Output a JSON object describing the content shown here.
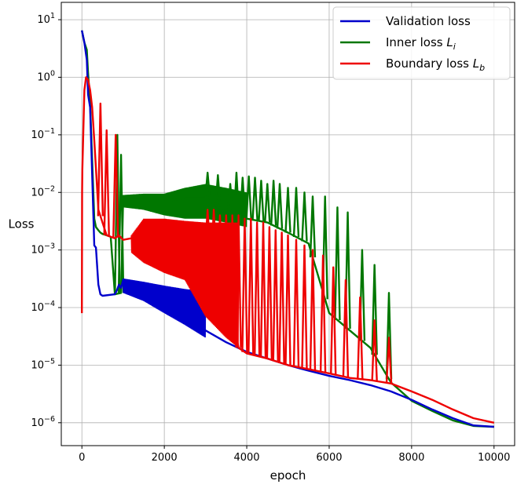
{
  "chart_data": {
    "type": "line",
    "title": "",
    "xlabel": "epoch",
    "ylabel": "Loss",
    "xlim": [
      -500,
      10500
    ],
    "ylim": [
      4e-07,
      20
    ],
    "yscale": "log",
    "grid": true,
    "legend_position": "top-right",
    "x_ticks": [
      {
        "value": 0,
        "label": "0"
      },
      {
        "value": 2000,
        "label": "2000"
      },
      {
        "value": 4000,
        "label": "4000"
      },
      {
        "value": 6000,
        "label": "6000"
      },
      {
        "value": 8000,
        "label": "8000"
      },
      {
        "value": 10000,
        "label": "10000"
      }
    ],
    "y_ticks": [
      {
        "value": 1e-06,
        "base": "10",
        "exp": "−6"
      },
      {
        "value": 1e-05,
        "base": "10",
        "exp": "−5"
      },
      {
        "value": 0.0001,
        "base": "10",
        "exp": "−4"
      },
      {
        "value": 0.001,
        "base": "10",
        "exp": "−3"
      },
      {
        "value": 0.01,
        "base": "10",
        "exp": "−2"
      },
      {
        "value": 0.1,
        "base": "10",
        "exp": "−1"
      },
      {
        "value": 1,
        "base": "10",
        "exp": "0"
      },
      {
        "value": 10,
        "base": "10",
        "exp": "1"
      }
    ],
    "series": [
      {
        "name": "Validation loss",
        "name_parts": {
          "main": "Validation loss",
          "math": "",
          "sub": ""
        },
        "color": "#0000cc",
        "x": [
          0,
          60,
          120,
          150,
          200,
          300,
          340,
          400,
          450,
          500,
          800,
          850,
          900,
          950,
          1000,
          1500,
          2000,
          2500,
          3000,
          3500,
          4000,
          4500,
          5000,
          5500,
          6000,
          6500,
          7000,
          7500,
          8000,
          8500,
          9000,
          9500,
          10000
        ],
        "y": [
          6.5,
          4.0,
          2.0,
          0.5,
          0.3,
          0.0012,
          0.0011,
          0.00025,
          0.00017,
          0.00016,
          0.00017,
          0.0002,
          0.00025,
          0.00022,
          0.0003,
          0.0002,
          0.00013,
          8e-05,
          4e-05,
          2.5e-05,
          1.7e-05,
          1.3e-05,
          1e-05,
          8e-06,
          6.5e-06,
          5.5e-06,
          4.5e-06,
          3.5e-06,
          2.5e-06,
          1.7e-06,
          1.2e-06,
          9e-07,
          8.5e-07
        ],
        "band": {
          "x": [
            1000,
            1500,
            2000,
            2500,
            3000
          ],
          "low": [
            0.00018,
            0.00013,
            8e-05,
            5e-05,
            3e-05
          ],
          "high": [
            0.00032,
            0.00028,
            0.00024,
            0.00021,
            0.00019
          ]
        },
        "spikes": []
      },
      {
        "name": "Inner loss L_i",
        "name_parts": {
          "main": "Inner loss ",
          "math": "L",
          "sub": "i"
        },
        "color": "#007700",
        "x": [
          0,
          60,
          120,
          150,
          200,
          300,
          340,
          400,
          450,
          500,
          600,
          700,
          800,
          950,
          1000,
          1500,
          2000,
          2500,
          3000,
          3500,
          4000,
          4500,
          5000,
          5500,
          6000,
          6500,
          7000,
          7500,
          8000,
          8500,
          9000,
          9500,
          10000
        ],
        "y": [
          6.5,
          4.0,
          3.0,
          1.2,
          0.35,
          0.0035,
          0.0025,
          0.0022,
          0.002,
          0.0019,
          0.0018,
          0.0017,
          0.00017,
          0.00018,
          0.0075,
          0.0075,
          0.007,
          0.008,
          0.008,
          0.0045,
          0.0035,
          0.003,
          0.002,
          0.0013,
          8e-05,
          4e-05,
          2e-05,
          5e-06,
          2.4e-06,
          1.6e-06,
          1.1e-06,
          8.8e-07,
          8.5e-07
        ],
        "band": {
          "x": [
            1000,
            1500,
            2000,
            2500,
            3000,
            3500,
            4000
          ],
          "low": [
            0.0055,
            0.005,
            0.004,
            0.0035,
            0.0035,
            0.003,
            0.0025
          ],
          "high": [
            0.009,
            0.0095,
            0.0095,
            0.012,
            0.014,
            0.012,
            0.01
          ]
        },
        "spikes": [
          {
            "x": 860,
            "y": 0.1
          },
          {
            "x": 950,
            "y": 0.045
          },
          {
            "x": 3050,
            "y": 0.022
          },
          {
            "x": 3300,
            "y": 0.02
          },
          {
            "x": 3600,
            "y": 0.014
          },
          {
            "x": 3750,
            "y": 0.022
          },
          {
            "x": 3900,
            "y": 0.018
          },
          {
            "x": 4050,
            "y": 0.019
          },
          {
            "x": 4200,
            "y": 0.018
          },
          {
            "x": 4350,
            "y": 0.016
          },
          {
            "x": 4500,
            "y": 0.014
          },
          {
            "x": 4650,
            "y": 0.016
          },
          {
            "x": 4800,
            "y": 0.014
          },
          {
            "x": 5000,
            "y": 0.012
          },
          {
            "x": 5200,
            "y": 0.012
          },
          {
            "x": 5400,
            "y": 0.01
          },
          {
            "x": 5600,
            "y": 0.0085
          },
          {
            "x": 5900,
            "y": 0.0085
          },
          {
            "x": 6200,
            "y": 0.0055
          },
          {
            "x": 6450,
            "y": 0.0045
          },
          {
            "x": 6800,
            "y": 0.001
          },
          {
            "x": 7100,
            "y": 0.00055
          },
          {
            "x": 7450,
            "y": 0.00018
          }
        ]
      },
      {
        "name": "Boundary loss L_b",
        "name_parts": {
          "main": "Boundary loss ",
          "math": "L",
          "sub": "b"
        },
        "color": "#ee0000",
        "x": [
          0,
          5,
          10,
          60,
          100,
          150,
          200,
          250,
          300,
          400,
          600,
          800,
          900,
          1000,
          1200,
          1500,
          2000,
          2500,
          3000,
          3500,
          3800,
          4000,
          4500,
          5000,
          5500,
          6000,
          6500,
          7000,
          7500,
          8000,
          8500,
          9000,
          9500,
          10000
        ],
        "y": [
          8e-05,
          0.01,
          0.025,
          0.6,
          1.0,
          0.9,
          0.6,
          0.3,
          0.08,
          0.005,
          0.0018,
          0.0016,
          0.0018,
          0.0015,
          0.0016,
          0.0024,
          0.0021,
          0.0019,
          0.0013,
          0.0003,
          2e-05,
          1.6e-05,
          1.3e-05,
          1e-05,
          8.5e-06,
          7.2e-06,
          6e-06,
          5.5e-06,
          4.8e-06,
          3.5e-06,
          2.5e-06,
          1.7e-06,
          1.2e-06,
          1e-06
        ],
        "band": {
          "x": [
            1200,
            1500,
            2000,
            2500,
            3000,
            3500,
            3800
          ],
          "low": [
            0.0009,
            0.0006,
            0.0004,
            0.0003,
            7e-05,
            3e-05,
            2e-05
          ],
          "high": [
            0.0018,
            0.0035,
            0.0035,
            0.0032,
            0.003,
            0.003,
            0.003
          ]
        },
        "spikes": [
          {
            "x": 450,
            "y": 0.35
          },
          {
            "x": 600,
            "y": 0.12
          },
          {
            "x": 820,
            "y": 0.1
          },
          {
            "x": 3050,
            "y": 0.005
          },
          {
            "x": 3200,
            "y": 0.005
          },
          {
            "x": 3350,
            "y": 0.004
          },
          {
            "x": 3500,
            "y": 0.004
          },
          {
            "x": 3650,
            "y": 0.004
          },
          {
            "x": 3800,
            "y": 0.004
          },
          {
            "x": 3950,
            "y": 0.0035
          },
          {
            "x": 4100,
            "y": 0.0035
          },
          {
            "x": 4250,
            "y": 0.003
          },
          {
            "x": 4400,
            "y": 0.003
          },
          {
            "x": 4550,
            "y": 0.0025
          },
          {
            "x": 4700,
            "y": 0.0022
          },
          {
            "x": 4850,
            "y": 0.002
          },
          {
            "x": 5000,
            "y": 0.0018
          },
          {
            "x": 5200,
            "y": 0.0015
          },
          {
            "x": 5400,
            "y": 0.0012
          },
          {
            "x": 5600,
            "y": 0.001
          },
          {
            "x": 5850,
            "y": 0.0008
          },
          {
            "x": 6100,
            "y": 0.0005
          },
          {
            "x": 6400,
            "y": 0.0003
          },
          {
            "x": 6750,
            "y": 0.00015
          },
          {
            "x": 7100,
            "y": 6e-05
          },
          {
            "x": 7450,
            "y": 3e-05
          }
        ]
      }
    ]
  }
}
